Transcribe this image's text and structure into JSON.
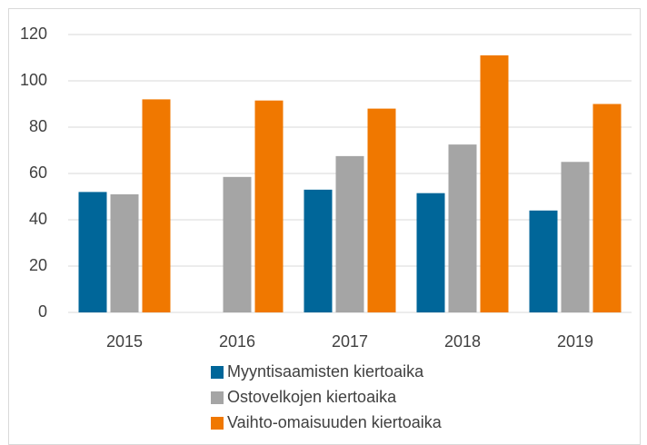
{
  "chart_data": {
    "type": "bar",
    "categories": [
      "2015",
      "2016",
      "2017",
      "2018",
      "2019"
    ],
    "series": [
      {
        "name": "Myyntisaamisten kiertoaika",
        "color": "#006699",
        "values": [
          52,
          null,
          53,
          51.5,
          44
        ]
      },
      {
        "name": "Ostovelkojen kiertoaika",
        "color": "#a5a5a5",
        "values": [
          51,
          58.5,
          67.5,
          72.5,
          65
        ]
      },
      {
        "name": "Vaihto-omaisuuden kiertoaika",
        "color": "#f07800",
        "values": [
          92,
          91.5,
          88,
          111,
          90
        ]
      }
    ],
    "ylim": [
      0,
      120
    ],
    "yticks": [
      0,
      20,
      40,
      60,
      80,
      100,
      120
    ],
    "grid": true,
    "legend": "bottom"
  }
}
